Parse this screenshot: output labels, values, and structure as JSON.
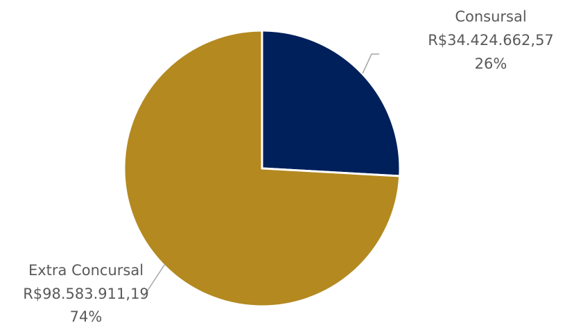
{
  "chart_data": {
    "type": "pie",
    "title": "",
    "slices": [
      {
        "label": "Consursal",
        "value_text": "R$34.424.662,57",
        "value": 34424662.57,
        "percent_text": "26%",
        "color": "#00205b"
      },
      {
        "label": "Extra Concursal",
        "value_text": "R$98.583.911,19",
        "value": 98583911.19,
        "percent_text": "74%",
        "color": "#b38920"
      }
    ],
    "legend": "none",
    "border_color": "#ffffff",
    "leader_line_color": "#a6a6a6"
  }
}
